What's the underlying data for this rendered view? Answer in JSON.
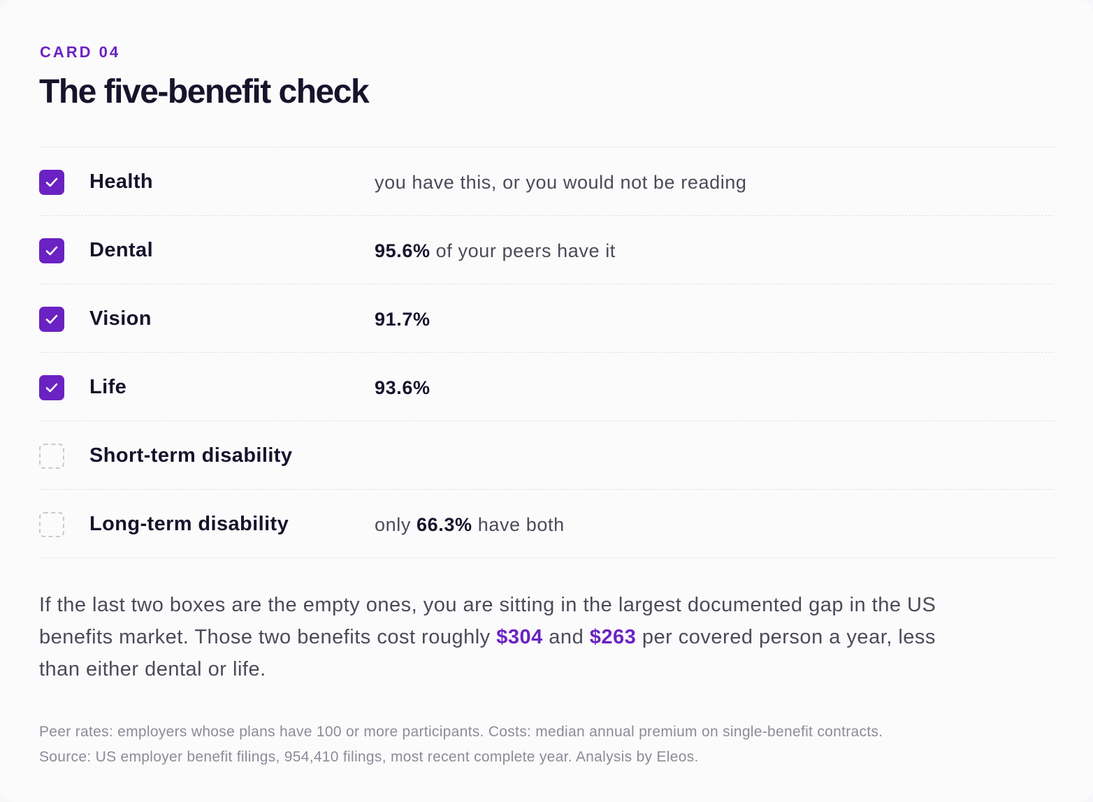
{
  "card": {
    "eyebrow": "CARD 04",
    "title": "The five-benefit check",
    "accent_color": "#6a22c2"
  },
  "checklist": {
    "rows": [
      {
        "label": "Health",
        "checked": true,
        "note_pre": "you have this, or you would not be reading",
        "note_value": "",
        "note_post": ""
      },
      {
        "label": "Dental",
        "checked": true,
        "note_pre": "",
        "note_value": "95.6%",
        "note_post": " of your peers have it"
      },
      {
        "label": "Vision",
        "checked": true,
        "note_pre": "",
        "note_value": "91.7%",
        "note_post": ""
      },
      {
        "label": "Life",
        "checked": true,
        "note_pre": "",
        "note_value": "93.6%",
        "note_post": ""
      },
      {
        "label": "Short-term disability",
        "checked": false,
        "note_pre": "",
        "note_value": "",
        "note_post": ""
      },
      {
        "label": "Long-term disability",
        "checked": false,
        "note_pre": "only ",
        "note_value": "66.3%",
        "note_post": " have both"
      }
    ],
    "check_icon": "checkmark-icon"
  },
  "summary": {
    "part1": "If the last two boxes are the empty ones, you are sitting in the largest documented gap in the US benefits market. Those two benefits cost roughly ",
    "value1": "$304",
    "part2": " and ",
    "value2": "$263",
    "part3": " per covered person a year, less than either dental or life."
  },
  "footnote": {
    "line1": "Peer rates: employers whose plans have 100 or more participants. Costs: median annual premium on single-benefit contracts.",
    "line2": "Source: US employer benefit filings, 954,410 filings, most recent complete year. Analysis by Eleos."
  }
}
